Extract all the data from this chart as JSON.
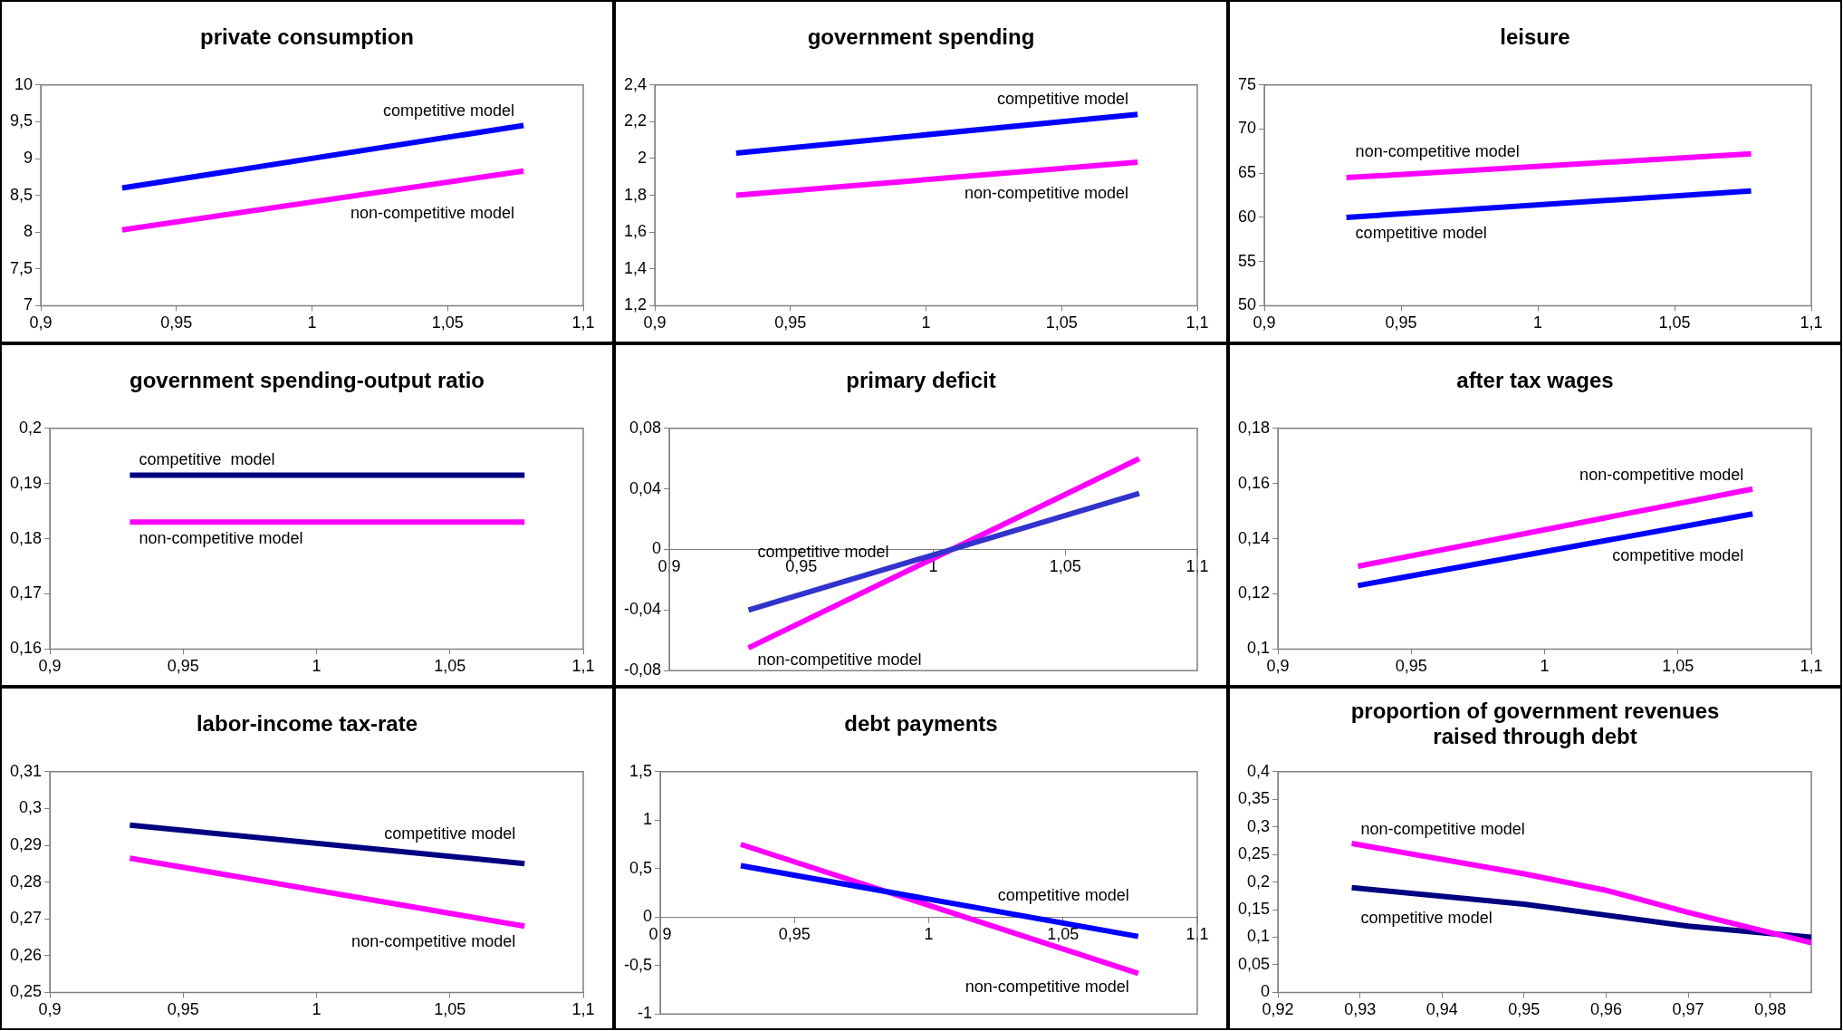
{
  "chart_data": [
    {
      "type": "line",
      "title": "private consumption",
      "x": [
        0.93,
        1.078
      ],
      "xlim": [
        0.9,
        1.1
      ],
      "xticks": [
        {
          "value": 0.9,
          "label": "0,9"
        },
        {
          "value": 0.95,
          "label": "0,95"
        },
        {
          "value": 1,
          "label": "1"
        },
        {
          "value": 1.05,
          "label": "1,05"
        },
        {
          "value": 1.1,
          "label": "1,1"
        }
      ],
      "ylim": [
        7,
        10
      ],
      "yticks": [
        7,
        {
          "value": 7.5,
          "label": "7,5"
        },
        8,
        {
          "value": 8.5,
          "label": "8,5"
        },
        9,
        {
          "value": 9.5,
          "label": "9,5"
        },
        10
      ],
      "grid": false,
      "legend": false,
      "marker": "none",
      "line_style": "solid",
      "series": [
        {
          "name": "competitive model",
          "color": "#0000ff",
          "values": [
            8.6,
            9.45
          ]
        },
        {
          "name": "non-competitive model",
          "color": "#ff00ff",
          "values": [
            8.03,
            8.83
          ]
        }
      ]
    },
    {
      "type": "line",
      "title": "government spending",
      "x": [
        0.93,
        1.078
      ],
      "xlim": [
        0.9,
        1.1
      ],
      "xticks": [
        {
          "value": 0.9,
          "label": "0,9"
        },
        {
          "value": 0.95,
          "label": "0,95"
        },
        {
          "value": 1,
          "label": "1"
        },
        {
          "value": 1.05,
          "label": "1,05"
        },
        {
          "value": 1.1,
          "label": "1,1"
        }
      ],
      "ylim": [
        1.2,
        2.4
      ],
      "yticks": [
        {
          "value": 1.2,
          "label": "1,2"
        },
        {
          "value": 1.4,
          "label": "1,4"
        },
        {
          "value": 1.6,
          "label": "1,6"
        },
        {
          "value": 1.8,
          "label": "1,8"
        },
        2,
        {
          "value": 2.2,
          "label": "2,2"
        },
        {
          "value": 2.4,
          "label": "2,4"
        }
      ],
      "grid": false,
      "legend": false,
      "marker": "none",
      "line_style": "solid",
      "series": [
        {
          "name": "competitive model",
          "color": "#0000ff",
          "values": [
            2.03,
            2.24
          ]
        },
        {
          "name": "non-competitive model",
          "color": "#ff00ff",
          "values": [
            1.8,
            1.98
          ]
        }
      ]
    },
    {
      "type": "line",
      "title": "leisure",
      "x": [
        0.93,
        1.078
      ],
      "xlim": [
        0.9,
        1.1
      ],
      "xticks": [
        {
          "value": 0.9,
          "label": "0,9"
        },
        {
          "value": 0.95,
          "label": "0,95"
        },
        {
          "value": 1,
          "label": "1"
        },
        {
          "value": 1.05,
          "label": "1,05"
        },
        {
          "value": 1.1,
          "label": "1,1"
        }
      ],
      "ylim": [
        50,
        75
      ],
      "yticks": [
        50,
        55,
        60,
        65,
        70,
        75
      ],
      "grid": false,
      "legend": false,
      "marker": "none",
      "line_style": "solid",
      "series": [
        {
          "name": "non-competitive model",
          "color": "#ff00ff",
          "values": [
            64.5,
            67.2
          ]
        },
        {
          "name": "competitive model",
          "color": "#0000ff",
          "values": [
            60,
            63
          ]
        }
      ]
    },
    {
      "type": "line",
      "title": "government spending-output ratio",
      "x": [
        0.93,
        1.078
      ],
      "xlim": [
        0.9,
        1.1
      ],
      "xticks": [
        {
          "value": 0.9,
          "label": "0,9"
        },
        {
          "value": 0.95,
          "label": "0,95"
        },
        {
          "value": 1,
          "label": "1"
        },
        {
          "value": 1.05,
          "label": "1,05"
        },
        {
          "value": 1.1,
          "label": "1,1"
        }
      ],
      "ylim": [
        0.16,
        0.2
      ],
      "yticks": [
        {
          "value": 0.16,
          "label": "0,16"
        },
        {
          "value": 0.17,
          "label": "0,17"
        },
        {
          "value": 0.18,
          "label": "0,18"
        },
        {
          "value": 0.19,
          "label": "0,19"
        },
        {
          "value": 0.2,
          "label": "0,2"
        }
      ],
      "grid": false,
      "legend": false,
      "marker": "none",
      "line_style": "solid",
      "series": [
        {
          "name": "competitive  model",
          "color": "#000080",
          "values": [
            0.1915,
            0.1915
          ]
        },
        {
          "name": "non-competitive model",
          "color": "#ff00ff",
          "values": [
            0.183,
            0.183
          ]
        }
      ]
    },
    {
      "type": "line",
      "title": "primary deficit",
      "x": [
        0.93,
        1.078
      ],
      "xlim": [
        0.9,
        1.1
      ],
      "xticks": [
        {
          "value": 0.9,
          "label": "0,9"
        },
        {
          "value": 0.95,
          "label": "0,95"
        },
        {
          "value": 1,
          "label": "1"
        },
        {
          "value": 1.05,
          "label": "1,05"
        },
        {
          "value": 1.1,
          "label": "1,1"
        }
      ],
      "ylim": [
        -0.08,
        0.08
      ],
      "yticks": [
        {
          "value": -0.08,
          "label": "-0,08"
        },
        {
          "value": -0.04,
          "label": "-0,04"
        },
        0,
        {
          "value": 0.04,
          "label": "0,04"
        },
        {
          "value": 0.08,
          "label": "0,08"
        }
      ],
      "grid": false,
      "legend": false,
      "marker": "none",
      "line_style": "solid",
      "series": [
        {
          "name": "competitive model",
          "color": "#3333cc",
          "values": [
            -0.04,
            0.037
          ]
        },
        {
          "name": "non-competitive model",
          "color": "#ff00ff",
          "values": [
            -0.065,
            0.06
          ]
        }
      ]
    },
    {
      "type": "line",
      "title": "after tax wages",
      "x": [
        0.93,
        1.078
      ],
      "xlim": [
        0.9,
        1.1
      ],
      "xticks": [
        {
          "value": 0.9,
          "label": "0,9"
        },
        {
          "value": 0.95,
          "label": "0,95"
        },
        {
          "value": 1,
          "label": "1"
        },
        {
          "value": 1.05,
          "label": "1,05"
        },
        {
          "value": 1.1,
          "label": "1,1"
        }
      ],
      "ylim": [
        0.1,
        0.18
      ],
      "yticks": [
        {
          "value": 0.1,
          "label": "0,1"
        },
        {
          "value": 0.12,
          "label": "0,12"
        },
        {
          "value": 0.14,
          "label": "0,14"
        },
        {
          "value": 0.16,
          "label": "0,16"
        },
        {
          "value": 0.18,
          "label": "0,18"
        }
      ],
      "grid": false,
      "legend": false,
      "marker": "none",
      "line_style": "solid",
      "series": [
        {
          "name": "non-competitive model",
          "color": "#ff00ff",
          "values": [
            0.13,
            0.158
          ]
        },
        {
          "name": "competitive model",
          "color": "#0000ff",
          "values": [
            0.123,
            0.149
          ]
        }
      ]
    },
    {
      "type": "line",
      "title": "labor-income tax-rate",
      "x": [
        0.93,
        1.078
      ],
      "xlim": [
        0.9,
        1.1
      ],
      "xticks": [
        {
          "value": 0.9,
          "label": "0,9"
        },
        {
          "value": 0.95,
          "label": "0,95"
        },
        {
          "value": 1,
          "label": "1"
        },
        {
          "value": 1.05,
          "label": "1,05"
        },
        {
          "value": 1.1,
          "label": "1,1"
        }
      ],
      "ylim": [
        0.25,
        0.31
      ],
      "yticks": [
        {
          "value": 0.25,
          "label": "0,25"
        },
        {
          "value": 0.26,
          "label": "0,26"
        },
        {
          "value": 0.27,
          "label": "0,27"
        },
        {
          "value": 0.28,
          "label": "0,28"
        },
        {
          "value": 0.29,
          "label": "0,29"
        },
        {
          "value": 0.3,
          "label": "0,3"
        },
        {
          "value": 0.31,
          "label": "0,31"
        }
      ],
      "grid": false,
      "legend": false,
      "marker": "none",
      "line_style": "solid",
      "series": [
        {
          "name": "competitive model",
          "color": "#000080",
          "values": [
            0.2955,
            0.285
          ]
        },
        {
          "name": "non-competitive model",
          "color": "#ff00ff",
          "values": [
            0.2865,
            0.268
          ]
        }
      ]
    },
    {
      "type": "line",
      "title": "debt payments",
      "x": [
        0.93,
        1.078
      ],
      "xlim": [
        0.9,
        1.1
      ],
      "xticks": [
        {
          "value": 0.9,
          "label": "0,9"
        },
        {
          "value": 0.95,
          "label": "0,95"
        },
        {
          "value": 1,
          "label": "1"
        },
        {
          "value": 1.05,
          "label": "1,05"
        },
        {
          "value": 1.1,
          "label": "1,1"
        }
      ],
      "ylim": [
        -1,
        1.5
      ],
      "yticks": [
        -1,
        {
          "value": -0.5,
          "label": "-0,5"
        },
        0,
        {
          "value": 0.5,
          "label": "0,5"
        },
        1,
        {
          "value": 1.5,
          "label": "1,5"
        }
      ],
      "grid": false,
      "legend": false,
      "marker": "none",
      "line_style": "solid",
      "series": [
        {
          "name": "competitive model",
          "color": "#0000ff",
          "values": [
            0.53,
            -0.2
          ]
        },
        {
          "name": "non-competitive model",
          "color": "#ff00ff",
          "values": [
            0.75,
            -0.58
          ]
        }
      ]
    },
    {
      "type": "line",
      "title": "proportion of government revenues raised through debt",
      "x": [
        0.929,
        0.95,
        0.96,
        0.97,
        0.985
      ],
      "xlim": [
        0.92,
        0.985
      ],
      "xticks": [
        {
          "value": 0.92,
          "label": "0,92"
        },
        {
          "value": 0.93,
          "label": "0,93"
        },
        {
          "value": 0.94,
          "label": "0,94"
        },
        {
          "value": 0.95,
          "label": "0,95"
        },
        {
          "value": 0.96,
          "label": "0,96"
        },
        {
          "value": 0.97,
          "label": "0,97"
        },
        {
          "value": 0.98,
          "label": "0,98"
        }
      ],
      "ylim": [
        0,
        0.4
      ],
      "yticks": [
        0,
        {
          "value": 0.05,
          "label": "0,05"
        },
        {
          "value": 0.1,
          "label": "0,1"
        },
        {
          "value": 0.15,
          "label": "0,15"
        },
        {
          "value": 0.2,
          "label": "0,2"
        },
        {
          "value": 0.25,
          "label": "0,25"
        },
        {
          "value": 0.3,
          "label": "0,3"
        },
        {
          "value": 0.35,
          "label": "0,35"
        },
        {
          "value": 0.4,
          "label": "0,4"
        }
      ],
      "grid": false,
      "legend": false,
      "marker": "none",
      "line_style": "solid",
      "series": [
        {
          "name": "non-competitive model",
          "color": "#ff00ff",
          "values": [
            0.27,
            0.215,
            0.185,
            0.145,
            0.09
          ]
        },
        {
          "name": "competitive model",
          "color": "#000080",
          "values": [
            0.19,
            0.16,
            0.14,
            0.12,
            0.1
          ]
        }
      ]
    }
  ]
}
